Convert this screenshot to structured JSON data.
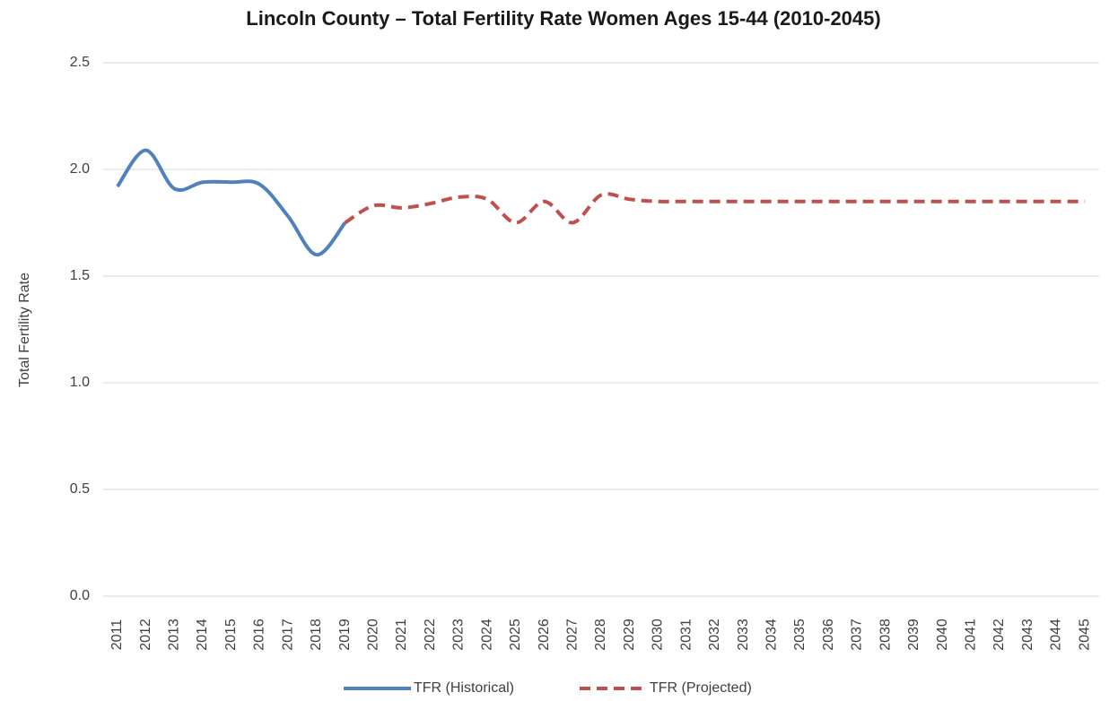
{
  "chart_data": {
    "type": "line",
    "title": "Lincoln County – Total Fertility Rate Women Ages 15-44 (2010-2045)",
    "y_label": "Total Fertility Rate",
    "categories": [
      "2011",
      "2012",
      "2013",
      "2014",
      "2015",
      "2016",
      "2017",
      "2018",
      "2019",
      "2020",
      "2021",
      "2022",
      "2023",
      "2024",
      "2025",
      "2026",
      "2027",
      "2028",
      "2029",
      "2030",
      "2031",
      "2032",
      "2033",
      "2034",
      "2035",
      "2036",
      "2037",
      "2038",
      "2039",
      "2040",
      "2041",
      "2042",
      "2043",
      "2044",
      "2045"
    ],
    "series": [
      {
        "name": "TFR (Historical)",
        "color": "#4f81bd",
        "dashed": false,
        "values": [
          1.92,
          2.09,
          1.91,
          1.94,
          1.94,
          1.93,
          1.78,
          1.6,
          1.75,
          null,
          null,
          null,
          null,
          null,
          null,
          null,
          null,
          null,
          null,
          null,
          null,
          null,
          null,
          null,
          null,
          null,
          null,
          null,
          null,
          null,
          null,
          null,
          null,
          null,
          null
        ]
      },
      {
        "name": "TFR (Projected)",
        "color": "#c0504d",
        "dashed": true,
        "values": [
          null,
          null,
          null,
          null,
          null,
          null,
          null,
          null,
          1.75,
          1.83,
          1.82,
          1.84,
          1.87,
          1.86,
          1.75,
          1.85,
          1.75,
          1.88,
          1.86,
          1.85,
          1.85,
          1.85,
          1.85,
          1.85,
          1.85,
          1.85,
          1.85,
          1.85,
          1.85,
          1.85,
          1.85,
          1.85,
          1.85,
          1.85,
          1.85
        ]
      }
    ],
    "ylim": [
      0,
      2.5
    ],
    "yticks": [
      {
        "value": 0,
        "label": "0.0"
      },
      0.5,
      {
        "value": 1,
        "label": "1.0"
      },
      1.5,
      {
        "value": 2,
        "label": "2.0"
      },
      2.5
    ],
    "grid": true,
    "legend": "bottom"
  }
}
